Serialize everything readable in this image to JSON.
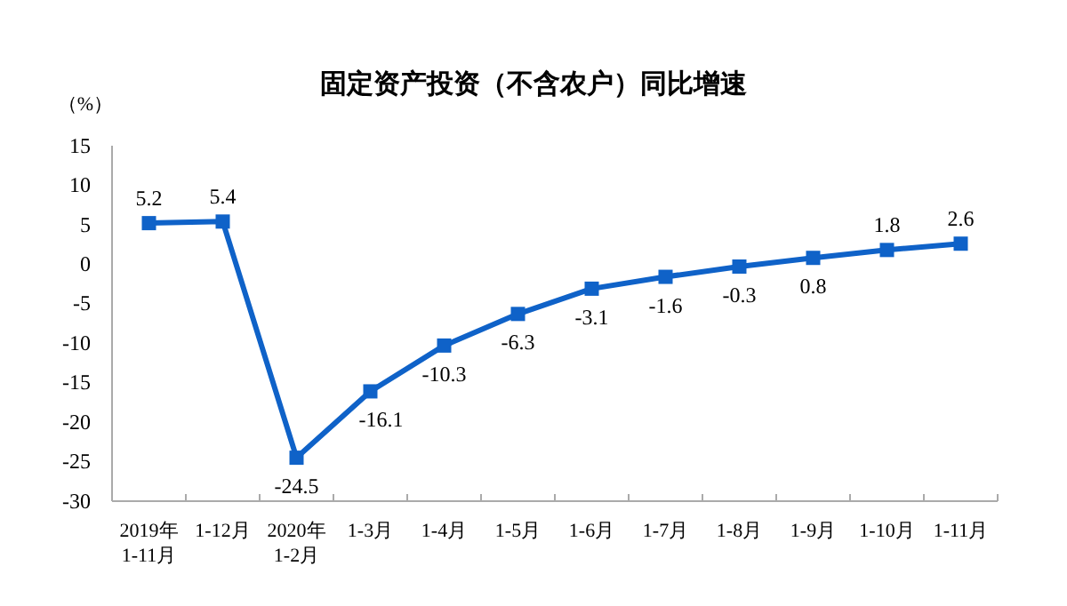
{
  "chart_data": {
    "type": "line",
    "title": "固定资产投资（不含农户）同比增速",
    "ylabel": "（%）",
    "categories": [
      "2019年\n1-11月",
      "1-12月",
      "2020年\n1-2月",
      "1-3月",
      "1-4月",
      "1-5月",
      "1-6月",
      "1-7月",
      "1-8月",
      "1-9月",
      "1-10月",
      "1-11月"
    ],
    "series": [
      {
        "color": "#0f62c8",
        "values": [
          5.2,
          5.4,
          -24.5,
          -16.1,
          -10.3,
          -6.3,
          -3.1,
          -1.6,
          -0.3,
          0.8,
          1.8,
          2.6
        ]
      }
    ],
    "ylim": [
      -30,
      15
    ],
    "yticks": [
      -30,
      -25,
      -20,
      -15,
      -10,
      -5,
      0,
      5,
      10,
      15
    ],
    "marker": "square",
    "line_style": "solid",
    "data_labels": true
  }
}
